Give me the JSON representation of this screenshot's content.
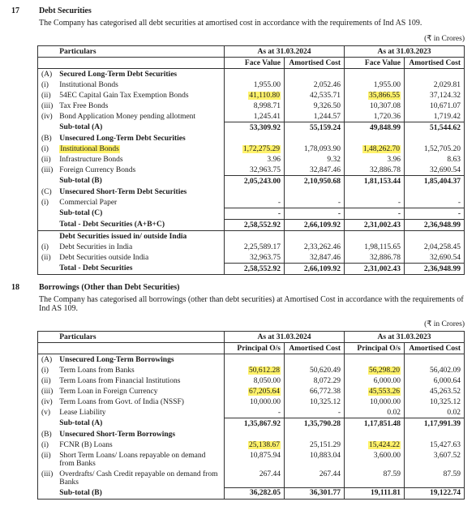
{
  "sec1": {
    "num": "17",
    "title": "Debt Securities",
    "sub": "The Company has categorised all debt securities at amortised cost in accordance with the requirements of Ind AS 109.",
    "unit": "(₹ in Crores)",
    "head": {
      "particulars": "Particulars",
      "p1": "As at 31.03.2024",
      "p2": "As at 31.03.2023",
      "fv": "Face Value",
      "ac": "Amortised Cost"
    },
    "rows": [
      {
        "l": "(A)",
        "d": "Secured Long-Term Debt Securities",
        "b": true
      },
      {
        "l": "(i)",
        "d": "Institutional Bonds",
        "v": [
          "1,955.00",
          "2,052.46",
          "1,955.00",
          "2,029.81"
        ]
      },
      {
        "l": "(ii)",
        "d": "54EC Capital Gain Tax Exemption Bonds",
        "v": [
          "41,110.80",
          "42,535.71",
          "35,866.55",
          "37,124.32"
        ],
        "hl": [
          0,
          2
        ]
      },
      {
        "l": "(iii)",
        "d": "Tax Free Bonds",
        "v": [
          "8,998.71",
          "9,326.50",
          "10,307.08",
          "10,671.07"
        ]
      },
      {
        "l": "(iv)",
        "d": "Bond Application Money pending allotment",
        "v": [
          "1,245.41",
          "1,244.57",
          "1,720.36",
          "1,719.42"
        ]
      },
      {
        "l": "",
        "d": "Sub-total (A)",
        "b": true,
        "v": [
          "53,309.92",
          "55,159.24",
          "49,848.99",
          "51,544.62"
        ],
        "bt": true
      },
      {
        "l": "(B)",
        "d": "Unsecured Long-Term Debt Securities",
        "b": true
      },
      {
        "l": "(i)",
        "d": "Institutional Bonds",
        "v": [
          "1,72,275.29",
          "1,78,093.90",
          "1,48,262.70",
          "1,52,705.20"
        ],
        "hl": [
          0,
          2
        ],
        "hld": true
      },
      {
        "l": "(ii)",
        "d": "Infrastructure Bonds",
        "v": [
          "3.96",
          "9.32",
          "3.96",
          "8.63"
        ]
      },
      {
        "l": "(iii)",
        "d": "Foreign Currency Bonds",
        "v": [
          "32,963.75",
          "32,847.46",
          "32,886.78",
          "32,690.54"
        ]
      },
      {
        "l": "",
        "d": "Sub-total (B)",
        "b": true,
        "v": [
          "2,05,243.00",
          "2,10,950.68",
          "1,81,153.44",
          "1,85,404.37"
        ],
        "bt": true
      },
      {
        "l": "(C)",
        "d": "Unsecured Short-Term Debt Securities",
        "b": true
      },
      {
        "l": "(i)",
        "d": "Commercial Paper",
        "v": [
          "-",
          "-",
          "-",
          "-"
        ]
      },
      {
        "l": "",
        "d": "Sub-total (C)",
        "b": true,
        "v": [
          "-",
          "-",
          "-",
          "-"
        ],
        "bt": true
      },
      {
        "l": "",
        "d": "Total - Debt Securities (A+B+C)",
        "b": true,
        "v": [
          "2,58,552.92",
          "2,66,109.92",
          "2,31,002.43",
          "2,36,948.99"
        ],
        "bt": true,
        "bb": true
      }
    ],
    "rows2": [
      {
        "l": "",
        "d": "Debt Securities issued in/ outside India",
        "b": true
      },
      {
        "l": "(i)",
        "d": "Debt Securities in India",
        "v": [
          "2,25,589.17",
          "2,33,262.46",
          "1,98,115.65",
          "2,04,258.45"
        ]
      },
      {
        "l": "(ii)",
        "d": "Debt Securities outside India",
        "v": [
          "32,963.75",
          "32,847.46",
          "32,886.78",
          "32,690.54"
        ]
      },
      {
        "l": "",
        "d": "Total - Debt Securities",
        "b": true,
        "v": [
          "2,58,552.92",
          "2,66,109.92",
          "2,31,002.43",
          "2,36,948.99"
        ],
        "bt": true,
        "bb": true
      }
    ]
  },
  "sec2": {
    "num": "18",
    "title": "Borrowings (Other than Debt Securities)",
    "sub": "The Company has categorised all borrowings (other than debt securities) at Amortised Cost in accordance with the requirements of Ind AS 109.",
    "unit": "(₹ in Crores)",
    "head": {
      "particulars": "Particulars",
      "p1": "As at 31.03.2024",
      "p2": "As at 31.03.2023",
      "po": "Principal O/s",
      "ac": "Amortised Cost"
    },
    "rows": [
      {
        "l": "(A)",
        "d": "Unsecured Long-Term Borrowings",
        "b": true
      },
      {
        "l": "(i)",
        "d": "Term Loans from Banks",
        "v": [
          "50,612.28",
          "50,620.49",
          "56,298.20",
          "56,402.09"
        ],
        "hl": [
          0,
          2
        ]
      },
      {
        "l": "(ii)",
        "d": "Term Loans from Financial Institutions",
        "v": [
          "8,050.00",
          "8,072.29",
          "6,000.00",
          "6,000.64"
        ]
      },
      {
        "l": "(iii)",
        "d": "Term Loan in Foreign Currency",
        "v": [
          "67,205.64",
          "66,772.38",
          "45,553.26",
          "45,263.52"
        ],
        "hl": [
          0,
          2
        ]
      },
      {
        "l": "(iv)",
        "d": "Term Loans from Govt. of India (NSSF)",
        "v": [
          "10,000.00",
          "10,325.12",
          "10,000.00",
          "10,325.12"
        ]
      },
      {
        "l": "(v)",
        "d": "Lease Liability",
        "v": [
          "-",
          "-",
          "0.02",
          "0.02"
        ]
      },
      {
        "l": "",
        "d": "Sub-total (A)",
        "b": true,
        "v": [
          "1,35,867.92",
          "1,35,790.28",
          "1,17,851.48",
          "1,17,991.39"
        ],
        "bt": true
      },
      {
        "l": "(B)",
        "d": "Unsecured Short-Term Borrowings",
        "b": true
      },
      {
        "l": "(i)",
        "d": "FCNR (B) Loans",
        "v": [
          "25,138.67",
          "25,151.29",
          "15,424.22",
          "15,427.63"
        ],
        "hl": [
          0,
          2
        ]
      },
      {
        "l": "(ii)",
        "d": "Short Term Loans/ Loans repayable on demand from Banks",
        "v": [
          "10,875.94",
          "10,883.04",
          "3,600.00",
          "3,607.52"
        ]
      },
      {
        "l": "(iii)",
        "d": "Overdrafts/ Cash Credit repayable on demand from Banks",
        "v": [
          "267.44",
          "267.44",
          "87.59",
          "87.59"
        ]
      },
      {
        "l": "",
        "d": "Sub-total (B)",
        "b": true,
        "v": [
          "36,282.05",
          "36,301.77",
          "19,111.81",
          "19,122.74"
        ],
        "bt": true,
        "bb": true
      }
    ]
  }
}
